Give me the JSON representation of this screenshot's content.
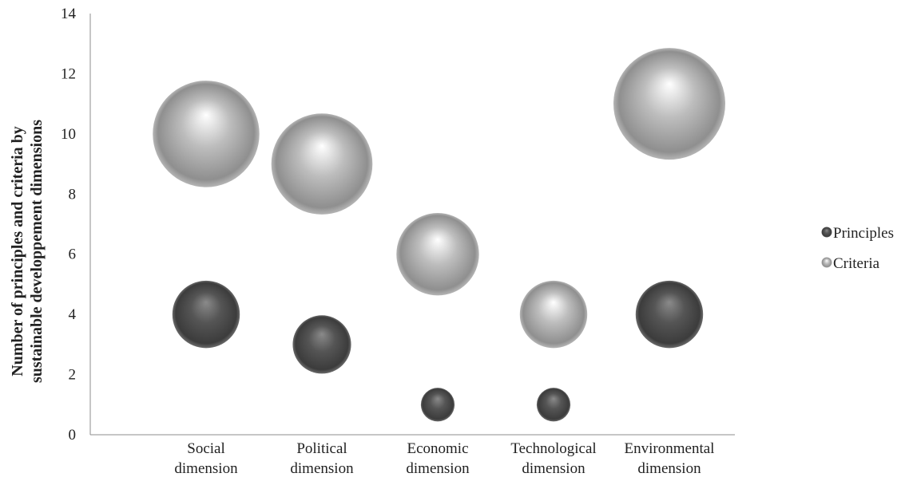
{
  "chart_data": {
    "type": "bubble",
    "categories": [
      "Social dimension",
      "Political dimension",
      "Economic dimension",
      "Technological dimension",
      "Environmental dimension"
    ],
    "category_lines": [
      [
        "Social",
        "dimension"
      ],
      [
        "Political",
        "dimension"
      ],
      [
        "Economic",
        "dimension"
      ],
      [
        "Technological",
        "dimension"
      ],
      [
        "Environmental",
        "dimension"
      ]
    ],
    "ylabel_lines": [
      "Number of principles  and criteria by",
      "sustainable developpement dimensions"
    ],
    "ylim": [
      0,
      14
    ],
    "yticks": [
      "0",
      "2",
      "4",
      "6",
      "8",
      "10",
      "12",
      "14"
    ],
    "grid": false,
    "legend_position": "right",
    "series": [
      {
        "name": "Principles",
        "color": "#4a4a4a",
        "x": [
          0.8,
          1.8,
          2.8,
          3.8,
          4.8
        ],
        "values": [
          4,
          3,
          1,
          1,
          4
        ],
        "sizes": [
          4,
          3,
          1,
          1,
          4
        ]
      },
      {
        "name": "Criteria",
        "color": "#a8a8a8",
        "x": [
          0.8,
          1.8,
          2.8,
          3.8,
          4.8
        ],
        "values": [
          10,
          9,
          6,
          4,
          11
        ],
        "sizes": [
          10,
          9,
          6,
          4,
          11
        ]
      }
    ]
  }
}
